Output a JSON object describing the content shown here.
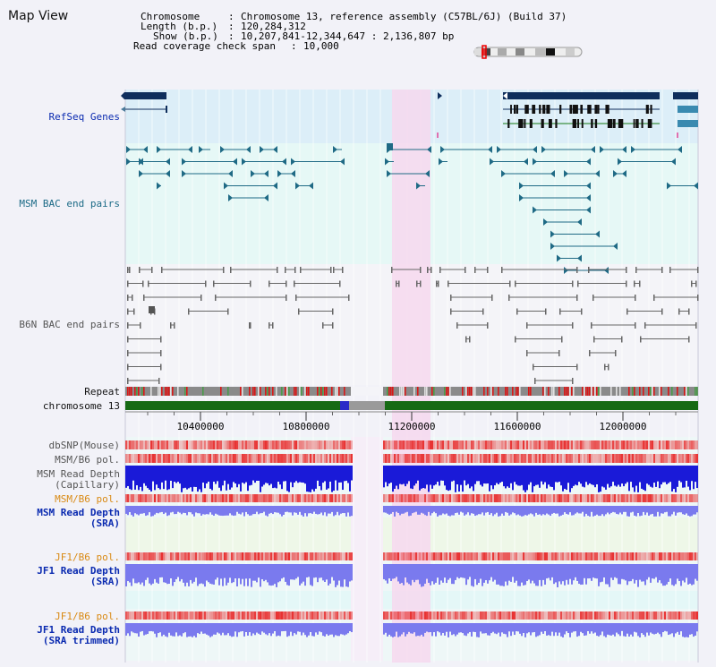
{
  "app_title": "Map View",
  "info": {
    "chromosome_label": "Chromosome",
    "chromosome_value": "Chromosome 13, reference assembly (C57BL/6J) (Build 37)",
    "length_label": "Length (b.p.)",
    "length_value": "120,284,312",
    "show_label": "Show (b.p.)",
    "show_value": "10,207,841-12,344,647 : 2,136,807 bp",
    "span_label": "Read coverage check span",
    "span_value": "10,000"
  },
  "tracks": {
    "refseq": "RefSeq Genes",
    "msm_bac": "MSM BAC end pairs",
    "b6n_bac": "B6N BAC end pairs",
    "repeat": "Repeat",
    "chromosome": "chromosome 13",
    "dbsnp": "dbSNP(Mouse)",
    "msm_b6_pol_1": "MSM/B6 pol.",
    "msm_depth_cap_1": "MSM Read Depth",
    "msm_depth_cap_2": "(Capillary)",
    "msm_b6_pol_2": "MSM/B6 pol.",
    "msm_depth_sra_1": "MSM Read Depth",
    "msm_depth_sra_2": "(SRA)",
    "jf1_b6_pol_1": "JF1/B6 pol.",
    "jf1_depth_sra_1": "JF1 Read Depth",
    "jf1_depth_sra_2": "(SRA)",
    "jf1_b6_pol_2": "JF1/B6 pol.",
    "jf1_depth_trim_1": "JF1 Read Depth",
    "jf1_depth_trim_2": "(SRA trimmed)"
  },
  "ruler": {
    "ticks": [
      "10400000",
      "10800000",
      "11200000",
      "11600000",
      "12000000"
    ]
  },
  "colors": {
    "refseq_bg": "#dceef8",
    "msm_bg": "#e6f8f6",
    "b6n_bg": "#f4f4f8",
    "highlight": "#f6d8ee",
    "gene": "#0f2e5c",
    "msm_feature": "#1f6a85",
    "b6n_feature": "#666666",
    "chromosome_bar": "#166a14",
    "depth_dark": "#1a1ad8",
    "depth_light": "#7a7aee",
    "pol_red": "#e83030"
  }
}
